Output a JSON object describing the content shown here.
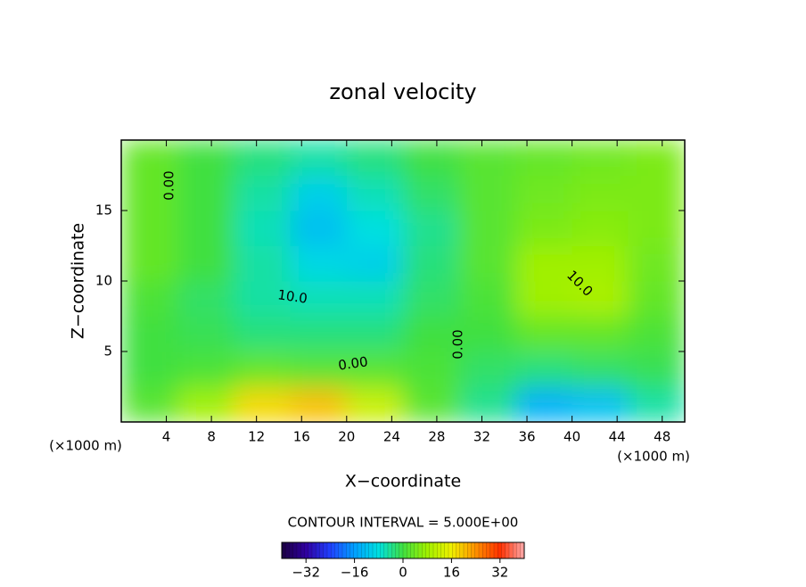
{
  "chart_data": {
    "type": "heatmap",
    "title": "zonal velocity",
    "x_label": "X−coordinate",
    "y_label": "Z−coordinate",
    "x_unit": "(×1000 m)",
    "y_unit": "(×1000 m)",
    "xlim": [
      0,
      50
    ],
    "ylim": [
      0,
      20
    ],
    "xticks": [
      4,
      8,
      12,
      16,
      20,
      24,
      28,
      32,
      36,
      40,
      44,
      48
    ],
    "yticks": [
      5,
      10,
      15
    ],
    "x_bins": [
      0,
      5,
      10,
      15,
      20,
      25,
      30,
      35,
      40,
      45,
      50
    ],
    "y_bins": [
      0,
      2.5,
      5,
      7.5,
      10,
      12.5,
      15,
      17.5,
      20
    ],
    "z": [
      [
        2,
        8,
        18,
        20,
        12,
        2,
        -4,
        -14,
        -12,
        -5
      ],
      [
        0,
        1,
        3,
        2,
        2,
        1,
        -2,
        -3,
        -2,
        -1
      ],
      [
        0,
        -1,
        -3,
        -3,
        -3,
        0,
        0,
        3,
        3,
        1
      ],
      [
        1,
        -2,
        -5,
        -6,
        -6,
        -2,
        1,
        8,
        9,
        3
      ],
      [
        3,
        0,
        -5,
        -9,
        -10,
        -3,
        2,
        8,
        8,
        4
      ],
      [
        3,
        0,
        -6,
        -12,
        -8,
        -4,
        2,
        5,
        6,
        5
      ],
      [
        3,
        0,
        -5,
        -10,
        -6,
        -2,
        2,
        4,
        5,
        5
      ],
      [
        3,
        0,
        -3,
        -5,
        -3,
        0,
        2,
        3,
        4,
        5
      ]
    ],
    "contour_labels": [
      "0.00",
      "10.0",
      "0.00",
      "0.00",
      "10.0"
    ],
    "contour_interval": "CONTOUR INTERVAL = 5.000E+00",
    "clim": [
      -40,
      40
    ],
    "colorbar_ticks": [
      {
        "value": -32,
        "label": "−32"
      },
      {
        "value": -16,
        "label": "−16"
      },
      0,
      16,
      32
    ]
  }
}
